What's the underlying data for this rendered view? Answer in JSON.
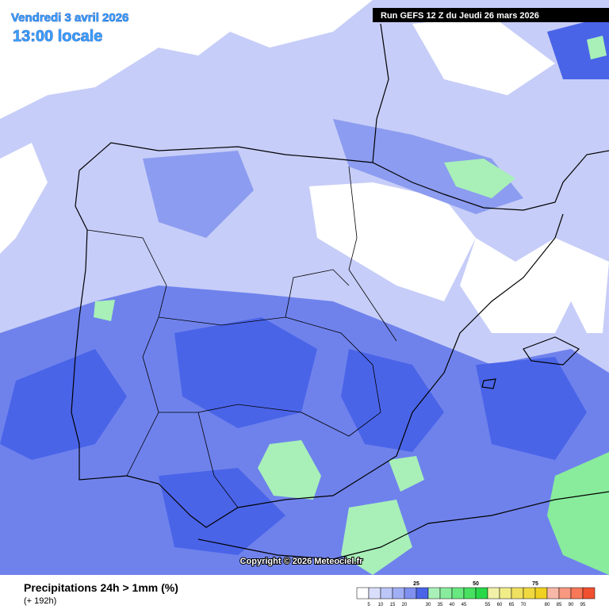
{
  "header": {
    "date": "Vendredi 3 avril 2026",
    "time": "13:00 locale",
    "run": "Run GEFS 12 Z du Jeudi 26 mars 2026"
  },
  "copyright": "Copyright © 2026 Meteociel.fr",
  "legend": {
    "title": "Precipitations 24h > 1mm (%)",
    "subtitle": "(+ 192h)",
    "ticks_top": [
      25,
      50,
      75
    ],
    "ticks_bottom": [
      5,
      10,
      15,
      20,
      30,
      35,
      40,
      45,
      55,
      60,
      65,
      70,
      80,
      85,
      90,
      95
    ],
    "colors": [
      "#ffffff",
      "#d8defc",
      "#bcc6f8",
      "#a0aef4",
      "#7f90ee",
      "#4a64e8",
      "#a8f0b8",
      "#88ec9c",
      "#68e880",
      "#48e060",
      "#28d848",
      "#f0f0a8",
      "#f0ec88",
      "#f0e060",
      "#f0d840",
      "#f0d020",
      "#f8b8a8",
      "#f89880",
      "#f87858",
      "#f05030"
    ]
  }
}
